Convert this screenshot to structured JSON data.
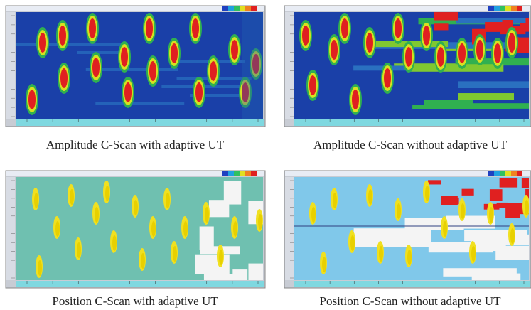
{
  "panels": [
    {
      "caption": "Amplitude C-Scan with adaptive UT"
    },
    {
      "caption": "Amplitude C-Scan without adaptive UT"
    },
    {
      "caption": "Position C-Scan with adaptive UT"
    },
    {
      "caption": "Position C-Scan without adaptive UT"
    }
  ]
}
